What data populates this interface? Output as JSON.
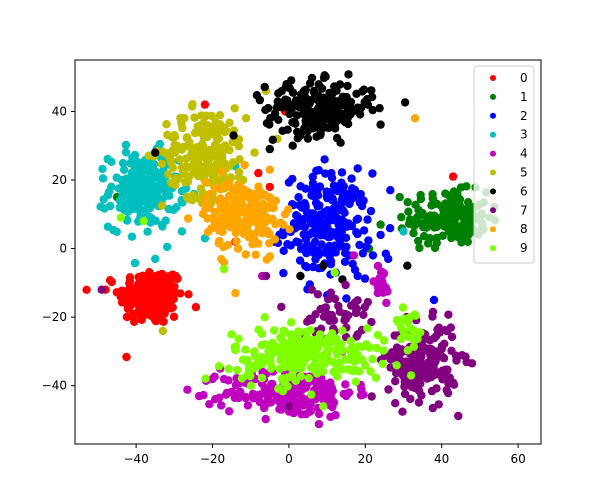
{
  "chart_data": {
    "type": "scatter",
    "title": "",
    "xlabel": "",
    "ylabel": "",
    "xlim": [
      -56,
      66
    ],
    "ylim": [
      -57,
      55
    ],
    "xticks": [
      -40,
      -20,
      0,
      20,
      40,
      60
    ],
    "yticks": [
      -40,
      -20,
      0,
      20,
      40
    ],
    "grid": false,
    "legend_position": "top-right",
    "series": [
      {
        "name": "0",
        "color": "#ff0000",
        "clusters": [
          {
            "cx": -36,
            "cy": -14,
            "sx": 4.2,
            "sy": 4.2,
            "n": 200
          }
        ],
        "points": [
          [
            -22,
            42
          ],
          [
            -1,
            40
          ],
          [
            12,
            37
          ],
          [
            -8,
            22
          ],
          [
            -5,
            18
          ],
          [
            -14,
            2
          ],
          [
            -48,
            -12
          ],
          [
            43,
            21
          ]
        ]
      },
      {
        "name": "1",
        "color": "#008000",
        "clusters": [
          {
            "cx": 42,
            "cy": 9,
            "sx": 5,
            "sy": 3.8,
            "n": 170
          }
        ],
        "points": [
          [
            -45,
            15
          ],
          [
            29,
            15
          ],
          [
            24,
            7
          ],
          [
            21,
            0
          ],
          [
            47,
            4
          ]
        ]
      },
      {
        "name": "2",
        "color": "#0000ff",
        "clusters": [
          {
            "cx": 10,
            "cy": 7,
            "sx": 5.5,
            "sy": 7.5,
            "n": 230
          }
        ],
        "points": [
          [
            -4,
            2
          ],
          [
            24,
            4
          ],
          [
            22,
            -2
          ],
          [
            38,
            -15
          ],
          [
            18,
            -8
          ],
          [
            26,
            -3
          ]
        ]
      },
      {
        "name": "3",
        "color": "#00bfbf",
        "clusters": [
          {
            "cx": -38,
            "cy": 17,
            "sx": 4.5,
            "sy": 5.5,
            "n": 210
          }
        ],
        "points": [
          [
            -28,
            5
          ],
          [
            -22,
            3
          ],
          [
            -14,
            24
          ],
          [
            -9,
            14
          ],
          [
            -35,
            -3
          ],
          [
            30,
            5
          ]
        ]
      },
      {
        "name": "4",
        "color": "#bf00bf",
        "clusters": [
          {
            "cx": 0,
            "cy": -42,
            "sx": 8.5,
            "sy": 3.5,
            "n": 210
          },
          {
            "cx": 24,
            "cy": -11,
            "sx": 1.4,
            "sy": 3,
            "n": 22
          }
        ],
        "points": [
          [
            17,
            -2
          ],
          [
            -7,
            -8
          ],
          [
            -12,
            -38
          ],
          [
            15,
            -43
          ],
          [
            -18,
            -35
          ],
          [
            9,
            -44
          ]
        ]
      },
      {
        "name": "5",
        "color": "#bfbf00",
        "clusters": [
          {
            "cx": -22,
            "cy": 28,
            "sx": 5.5,
            "sy": 6.5,
            "n": 200
          }
        ],
        "points": [
          [
            -6,
            46
          ],
          [
            -3,
            32
          ],
          [
            -12,
            20
          ],
          [
            -33,
            -24
          ],
          [
            -17,
            10
          ],
          [
            -9,
            28
          ]
        ]
      },
      {
        "name": "6",
        "color": "#000000",
        "clusters": [
          {
            "cx": 8,
            "cy": 41,
            "sx": 7,
            "sy": 3.8,
            "n": 220
          }
        ],
        "points": [
          [
            -5,
            29
          ],
          [
            1,
            30
          ],
          [
            3,
            33
          ],
          [
            -35,
            28
          ],
          [
            3,
            -8
          ],
          [
            9,
            -5
          ],
          [
            14,
            -9
          ],
          [
            31,
            -5
          ]
        ]
      },
      {
        "name": "7",
        "color": "#800080",
        "clusters": [
          {
            "cx": 35,
            "cy": -33,
            "sx": 4.5,
            "sy": 5.5,
            "n": 200
          },
          {
            "cx": 12,
            "cy": -19,
            "sx": 4.5,
            "sy": 3.5,
            "n": 45
          }
        ],
        "points": [
          [
            -49,
            -12
          ],
          [
            -6,
            -8
          ],
          [
            -2,
            -17
          ],
          [
            6,
            -12
          ],
          [
            18,
            -25
          ],
          [
            30,
            -25
          ],
          [
            0,
            -46
          ]
        ]
      },
      {
        "name": "8",
        "color": "#ffa500",
        "clusters": [
          {
            "cx": -12,
            "cy": 10,
            "sx": 4.8,
            "sy": 5,
            "n": 210
          }
        ],
        "points": [
          [
            -14,
            -13
          ],
          [
            -1,
            10
          ],
          [
            -5,
            23
          ],
          [
            -17,
            -4
          ],
          [
            33,
            38
          ],
          [
            -7,
            5
          ]
        ]
      },
      {
        "name": "9",
        "color": "#7fff00",
        "clusters": [
          {
            "cx": 5,
            "cy": -31,
            "sx": 10,
            "sy": 4,
            "n": 230
          },
          {
            "cx": 31,
            "cy": -22,
            "sx": 1.8,
            "sy": 2.2,
            "n": 18
          }
        ],
        "points": [
          [
            -44,
            9
          ],
          [
            -38,
            8
          ],
          [
            -17,
            -6
          ],
          [
            -15,
            -25
          ],
          [
            12,
            -7
          ],
          [
            9,
            -46
          ],
          [
            23,
            -29
          ],
          [
            32,
            -37
          ]
        ]
      }
    ]
  }
}
